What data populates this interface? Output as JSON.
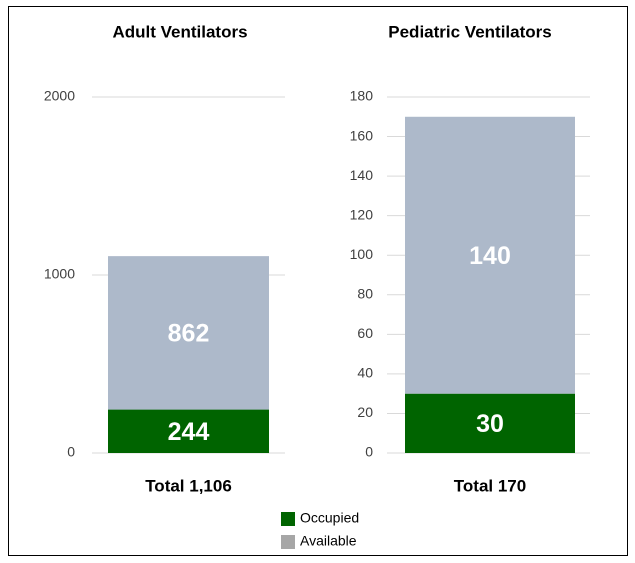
{
  "chart_data": [
    {
      "type": "bar",
      "title": "Adult Ventilators",
      "categories": [
        "Total 1,106"
      ],
      "series": [
        {
          "name": "Occupied",
          "color": "#006400",
          "legend_color": "#006400",
          "values": [
            244
          ]
        },
        {
          "name": "Available",
          "color": "#adb9ca",
          "legend_color": "#a6a6a6",
          "values": [
            862
          ]
        }
      ],
      "ylim": [
        0,
        2000
      ],
      "yticks": [
        0,
        1000,
        2000
      ],
      "grid": true,
      "stacked": true
    },
    {
      "type": "bar",
      "title": "Pediatric Ventilators",
      "categories": [
        "Total 170"
      ],
      "series": [
        {
          "name": "Occupied",
          "color": "#006400",
          "legend_color": "#006400",
          "values": [
            30
          ]
        },
        {
          "name": "Available",
          "color": "#adb9ca",
          "legend_color": "#a6a6a6",
          "values": [
            140
          ]
        }
      ],
      "ylim": [
        0,
        180
      ],
      "yticks": [
        0,
        20,
        40,
        60,
        80,
        100,
        120,
        140,
        160,
        180
      ],
      "grid": true,
      "stacked": true
    }
  ]
}
